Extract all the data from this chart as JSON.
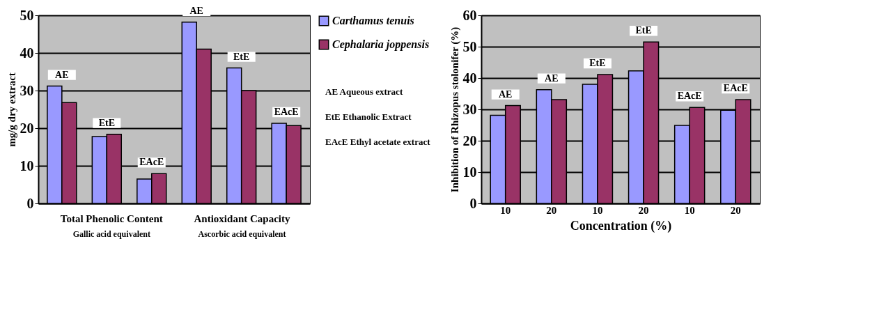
{
  "chart_data": [
    {
      "type": "bar",
      "ylabel": "mg/g dry extract",
      "categories": [
        null,
        null,
        null,
        null,
        null,
        null
      ],
      "series": [
        {
          "name": "Carthamus tenuis",
          "color": "#9999ff",
          "values": [
            31.2,
            17.8,
            6.5,
            48.2,
            36.0,
            21.3
          ]
        },
        {
          "name": "Cephalaria joppensis",
          "color": "#993366",
          "values": [
            26.8,
            18.4,
            7.9,
            41.0,
            30.0,
            20.7
          ]
        }
      ],
      "ylim": [
        0,
        50
      ],
      "yticks": [
        0,
        10,
        20,
        30,
        40,
        50
      ],
      "grid": "y",
      "tick_labels": "y",
      "legend": "right",
      "annotations": [
        "AE",
        "EtE",
        "EAcE",
        "AE",
        "EtE",
        "EAcE",
        "Total Phenolic Content",
        "Gallic acid equivalent",
        "Antioxidant Capacity",
        "Ascorbic acid equivalent",
        "AE Aqueous extract",
        "EtE Ethanolic Extract",
        "EAcE Ethyl acetate extract"
      ]
    },
    {
      "type": "bar",
      "xlabel": "Concentration (%)",
      "ylabel": "Inhibition of Rhizopus stolonifer (%)",
      "categories": [
        "10",
        "20",
        "10",
        "20",
        "10",
        "20"
      ],
      "series": [
        {
          "color": "#9999ff",
          "values": [
            28.1,
            36.3,
            38.0,
            42.3,
            24.9,
            29.7
          ]
        },
        {
          "color": "#993366",
          "values": [
            31.2,
            33.1,
            41.1,
            51.5,
            30.6,
            33.1
          ]
        }
      ],
      "ylim": [
        0,
        60
      ],
      "yticks": [
        0,
        10,
        20,
        30,
        40,
        50,
        60
      ],
      "grid": "y",
      "annotations": [
        "AE",
        "AE",
        "EtE",
        "EtE",
        "EAcE",
        "EAcE"
      ]
    }
  ]
}
